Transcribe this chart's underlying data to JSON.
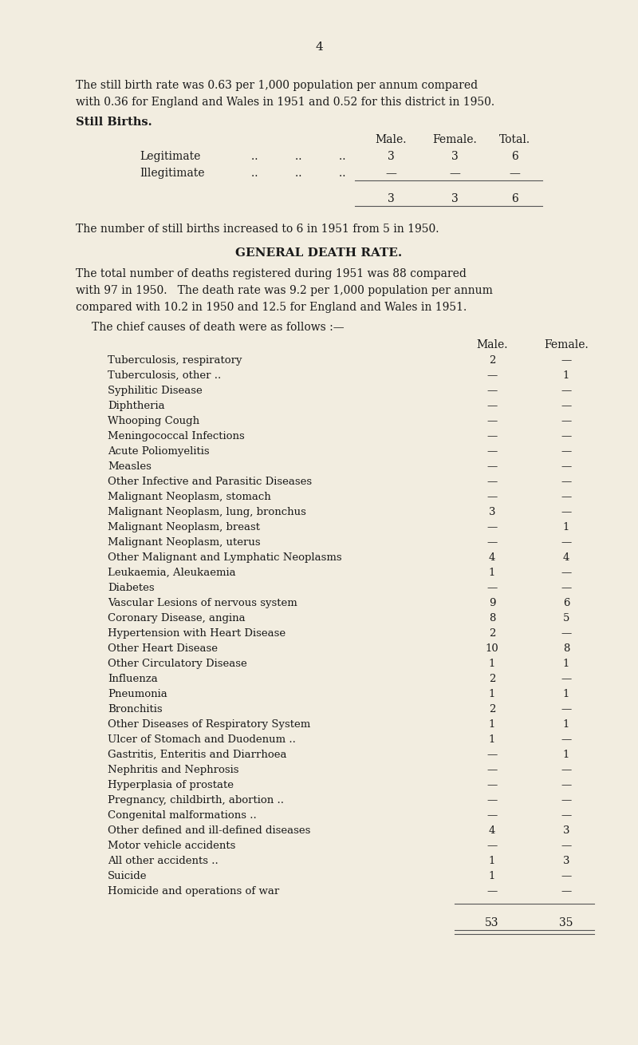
{
  "background_color": "#f2ede0",
  "page_number": "4",
  "intro_text": [
    "The still birth rate was 0.63 per 1,000 population per annum compared",
    "with 0.36 for England and Wales in 1951 and 0.52 for this district in 1950."
  ],
  "still_births_title": "Still Births.",
  "still_births_rows": [
    [
      "Legitimate",
      ".. ",
      ".. ",
      ".. ",
      "3",
      "3",
      "6"
    ],
    [
      "Illegitimate",
      ".. ",
      ".. ",
      ".. ",
      "—",
      "—",
      "—"
    ]
  ],
  "still_births_totals": [
    "3",
    "3",
    "6"
  ],
  "still_births_note": "The number of still births increased to 6 in 1951 from 5 in 1950.",
  "death_rate_title": "GENERAL DEATH RATE.",
  "death_rate_text": [
    "The total number of deaths registered during 1951 was 88 compared",
    "with 97 in 1950.   The death rate was 9.2 per 1,000 population per annum",
    "compared with 10.2 in 1950 and 12.5 for England and Wales in 1951."
  ],
  "causes_intro": "The chief causes of death were as follows :—",
  "causes": [
    [
      "Tuberculosis, respiratory",
      "2",
      "—"
    ],
    [
      "Tuberculosis, other ..",
      "—",
      "1"
    ],
    [
      "Syphilitic Disease",
      "—",
      "—"
    ],
    [
      "Diphtheria",
      "—",
      "—"
    ],
    [
      "Whooping Cough",
      "—",
      "—"
    ],
    [
      "Meningococcal Infections",
      "—",
      "—"
    ],
    [
      "Acute Poliomyelitis",
      "—",
      "—"
    ],
    [
      "Measles",
      "—",
      "—"
    ],
    [
      "Other Infective and Parasitic Diseases",
      "—",
      "—"
    ],
    [
      "Malignant Neoplasm, stomach",
      "—",
      "—"
    ],
    [
      "Malignant Neoplasm, lung, bronchus",
      "3",
      "—"
    ],
    [
      "Malignant Neoplasm, breast",
      "—",
      "1"
    ],
    [
      "Malignant Neoplasm, uterus",
      "—",
      "—"
    ],
    [
      "Other Malignant and Lymphatic Neoplasms",
      "4",
      "4"
    ],
    [
      "Leukaemia, Aleukaemia",
      "1",
      "—"
    ],
    [
      "Diabetes",
      "—",
      "—"
    ],
    [
      "Vascular Lesions of nervous system",
      "9",
      "6"
    ],
    [
      "Coronary Disease, angina",
      "8",
      "5"
    ],
    [
      "Hypertension with Heart Disease",
      "2",
      "—"
    ],
    [
      "Other Heart Disease",
      "10",
      "8"
    ],
    [
      "Other Circulatory Disease",
      "1",
      "1"
    ],
    [
      "Influenza",
      "2",
      "—"
    ],
    [
      "Pneumonia",
      "1",
      "1"
    ],
    [
      "Bronchitis",
      "2",
      "—"
    ],
    [
      "Other Diseases of Respiratory System",
      "1",
      "1"
    ],
    [
      "Ulcer of Stomach and Duodenum ..",
      "1",
      "—"
    ],
    [
      "Gastritis, Enteritis and Diarrhoea",
      "—",
      "1"
    ],
    [
      "Nephritis and Nephrosis",
      "—",
      "—"
    ],
    [
      "Hyperplasia of prostate",
      "—",
      "—"
    ],
    [
      "Pregnancy, childbirth, abortion ..",
      "—",
      "—"
    ],
    [
      "Congenital malformations ..",
      "—",
      "—"
    ],
    [
      "Other defined and ill-defined diseases",
      "4",
      "3"
    ],
    [
      "Motor vehicle accidents",
      "—",
      "—"
    ],
    [
      "All other accidents ..",
      "1",
      "3"
    ],
    [
      "Suicide",
      "1",
      "—"
    ],
    [
      "Homicide and operations of war",
      "—",
      "—"
    ]
  ],
  "causes_totals": [
    "53",
    "35"
  ]
}
